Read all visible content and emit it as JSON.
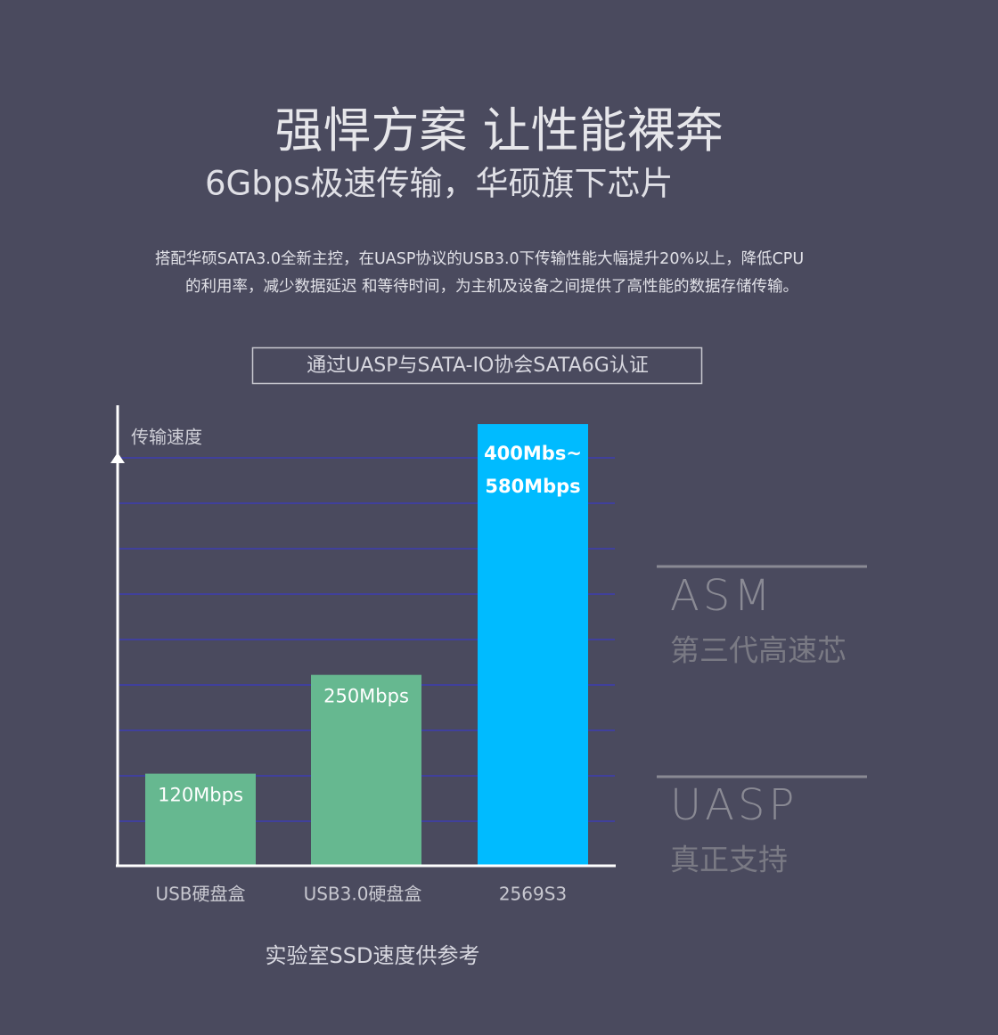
{
  "header": {
    "title": "强悍方案 让性能裸奔",
    "subtitle": "6Gbps极速传输，华硕旗下芯片",
    "description": [
      "搭配华硕SATA3.0全新主控，在UASP协议的USB3.0下传输性能大幅提升20%以上，降低CPU",
      "的利用率，减少数据延迟  和等待时间，为主机及设备之间提供了高性能的数据存储传输。"
    ],
    "badge": "通过UASP与SATA-IO协会SATA6G认证"
  },
  "chart_data": {
    "type": "bar",
    "y_label": "传输速度",
    "categories": [
      "USB硬盘盒",
      "USB3.0硬盘盒",
      "2569S3"
    ],
    "values": [
      120,
      250,
      580
    ],
    "value_labels": [
      "120Mbps",
      "250Mbps",
      [
        "400Mbs~",
        "580Mbps"
      ]
    ],
    "colors": [
      "#66b890",
      "#66b890",
      "#00bbff"
    ],
    "ylim": [
      0,
      600
    ],
    "note": "实验室SSD速度供参考"
  },
  "features": [
    {
      "title": "ASM",
      "subtitle": "第三代高速芯"
    },
    {
      "title": "UASP",
      "subtitle": "真正支持"
    }
  ]
}
